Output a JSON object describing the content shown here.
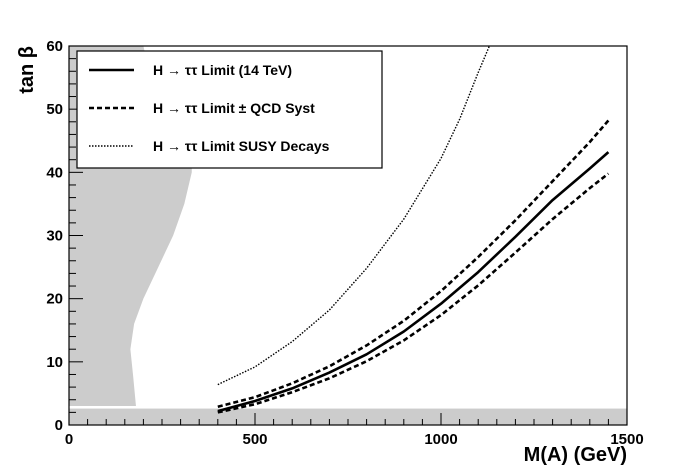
{
  "chart_data": {
    "type": "line",
    "title": "",
    "xlabel": "M(A) (GeV)",
    "ylabel": "tan β",
    "xlim": [
      0,
      1500
    ],
    "ylim": [
      0,
      60
    ],
    "x_ticks": [
      "0",
      "500",
      "1000",
      "1500"
    ],
    "y_ticks": [
      "0",
      "10",
      "20",
      "30",
      "40",
      "50",
      "60"
    ],
    "grid": false,
    "legend_position": "top-left",
    "excluded_region": {
      "color": "#cccccc",
      "description": "",
      "lower_band_tanb_max": 2.6,
      "boundary": [
        {
          "tanb": 2.6,
          "mA_max": 1500
        },
        {
          "tanb": 3,
          "mA_max": 180
        },
        {
          "tanb": 8,
          "mA_max": 172
        },
        {
          "tanb": 12,
          "mA_max": 165
        },
        {
          "tanb": 16,
          "mA_max": 175
        },
        {
          "tanb": 20,
          "mA_max": 200
        },
        {
          "tanb": 25,
          "mA_max": 240
        },
        {
          "tanb": 30,
          "mA_max": 280
        },
        {
          "tanb": 35,
          "mA_max": 310
        },
        {
          "tanb": 40,
          "mA_max": 330
        },
        {
          "tanb": 44,
          "mA_max": 330
        },
        {
          "tanb": 47,
          "mA_max": 290
        },
        {
          "tanb": 52,
          "mA_max": 240
        },
        {
          "tanb": 56,
          "mA_max": 215
        },
        {
          "tanb": 60,
          "mA_max": 200
        }
      ]
    },
    "series": [
      {
        "name": "H → ττ Limit (14 TeV)",
        "style": "solid",
        "color": "#000000",
        "x": [
          400,
          500,
          600,
          700,
          800,
          900,
          1000,
          1100,
          1200,
          1300,
          1400,
          1450
        ],
        "y": [
          2.2,
          3.8,
          5.8,
          8.3,
          11.2,
          14.8,
          19.2,
          24.2,
          29.8,
          35.6,
          40.6,
          43.2
        ]
      },
      {
        "name": "H → ττ Limit ± QCD Syst (upper)",
        "style": "dashed",
        "color": "#000000",
        "x": [
          400,
          500,
          600,
          700,
          800,
          900,
          1000,
          1100,
          1200,
          1300,
          1400,
          1450
        ],
        "y": [
          2.9,
          4.4,
          6.6,
          9.3,
          12.6,
          16.5,
          21.2,
          26.6,
          32.4,
          38.6,
          44.8,
          48.2
        ]
      },
      {
        "name": "H → ττ Limit ± QCD Syst (lower)",
        "style": "dashed",
        "color": "#000000",
        "x": [
          400,
          500,
          600,
          700,
          800,
          900,
          1000,
          1100,
          1200,
          1300,
          1400,
          1450
        ],
        "y": [
          2.0,
          3.3,
          5.2,
          7.4,
          10.1,
          13.4,
          17.4,
          22.1,
          27.3,
          32.6,
          37.5,
          39.8
        ]
      },
      {
        "name": "H → ττ Limit SUSY Decays",
        "style": "dotted",
        "color": "#000000",
        "x": [
          400,
          500,
          600,
          700,
          800,
          900,
          1000,
          1050,
          1100,
          1130
        ],
        "y": [
          6.4,
          9.2,
          13.2,
          18.2,
          24.8,
          32.6,
          42.2,
          48.4,
          55.8,
          60.0
        ]
      }
    ],
    "legend": [
      {
        "parts": [
          "H",
          "→",
          "ττ",
          "Limit (14 TeV)"
        ],
        "style": "solid"
      },
      {
        "parts": [
          "H",
          "→",
          "ττ",
          "Limit",
          "±",
          "QCD Syst"
        ],
        "style": "dashed"
      },
      {
        "parts": [
          "H",
          "→",
          "ττ",
          "Limit SUSY Decays"
        ],
        "style": "dotted"
      }
    ]
  }
}
